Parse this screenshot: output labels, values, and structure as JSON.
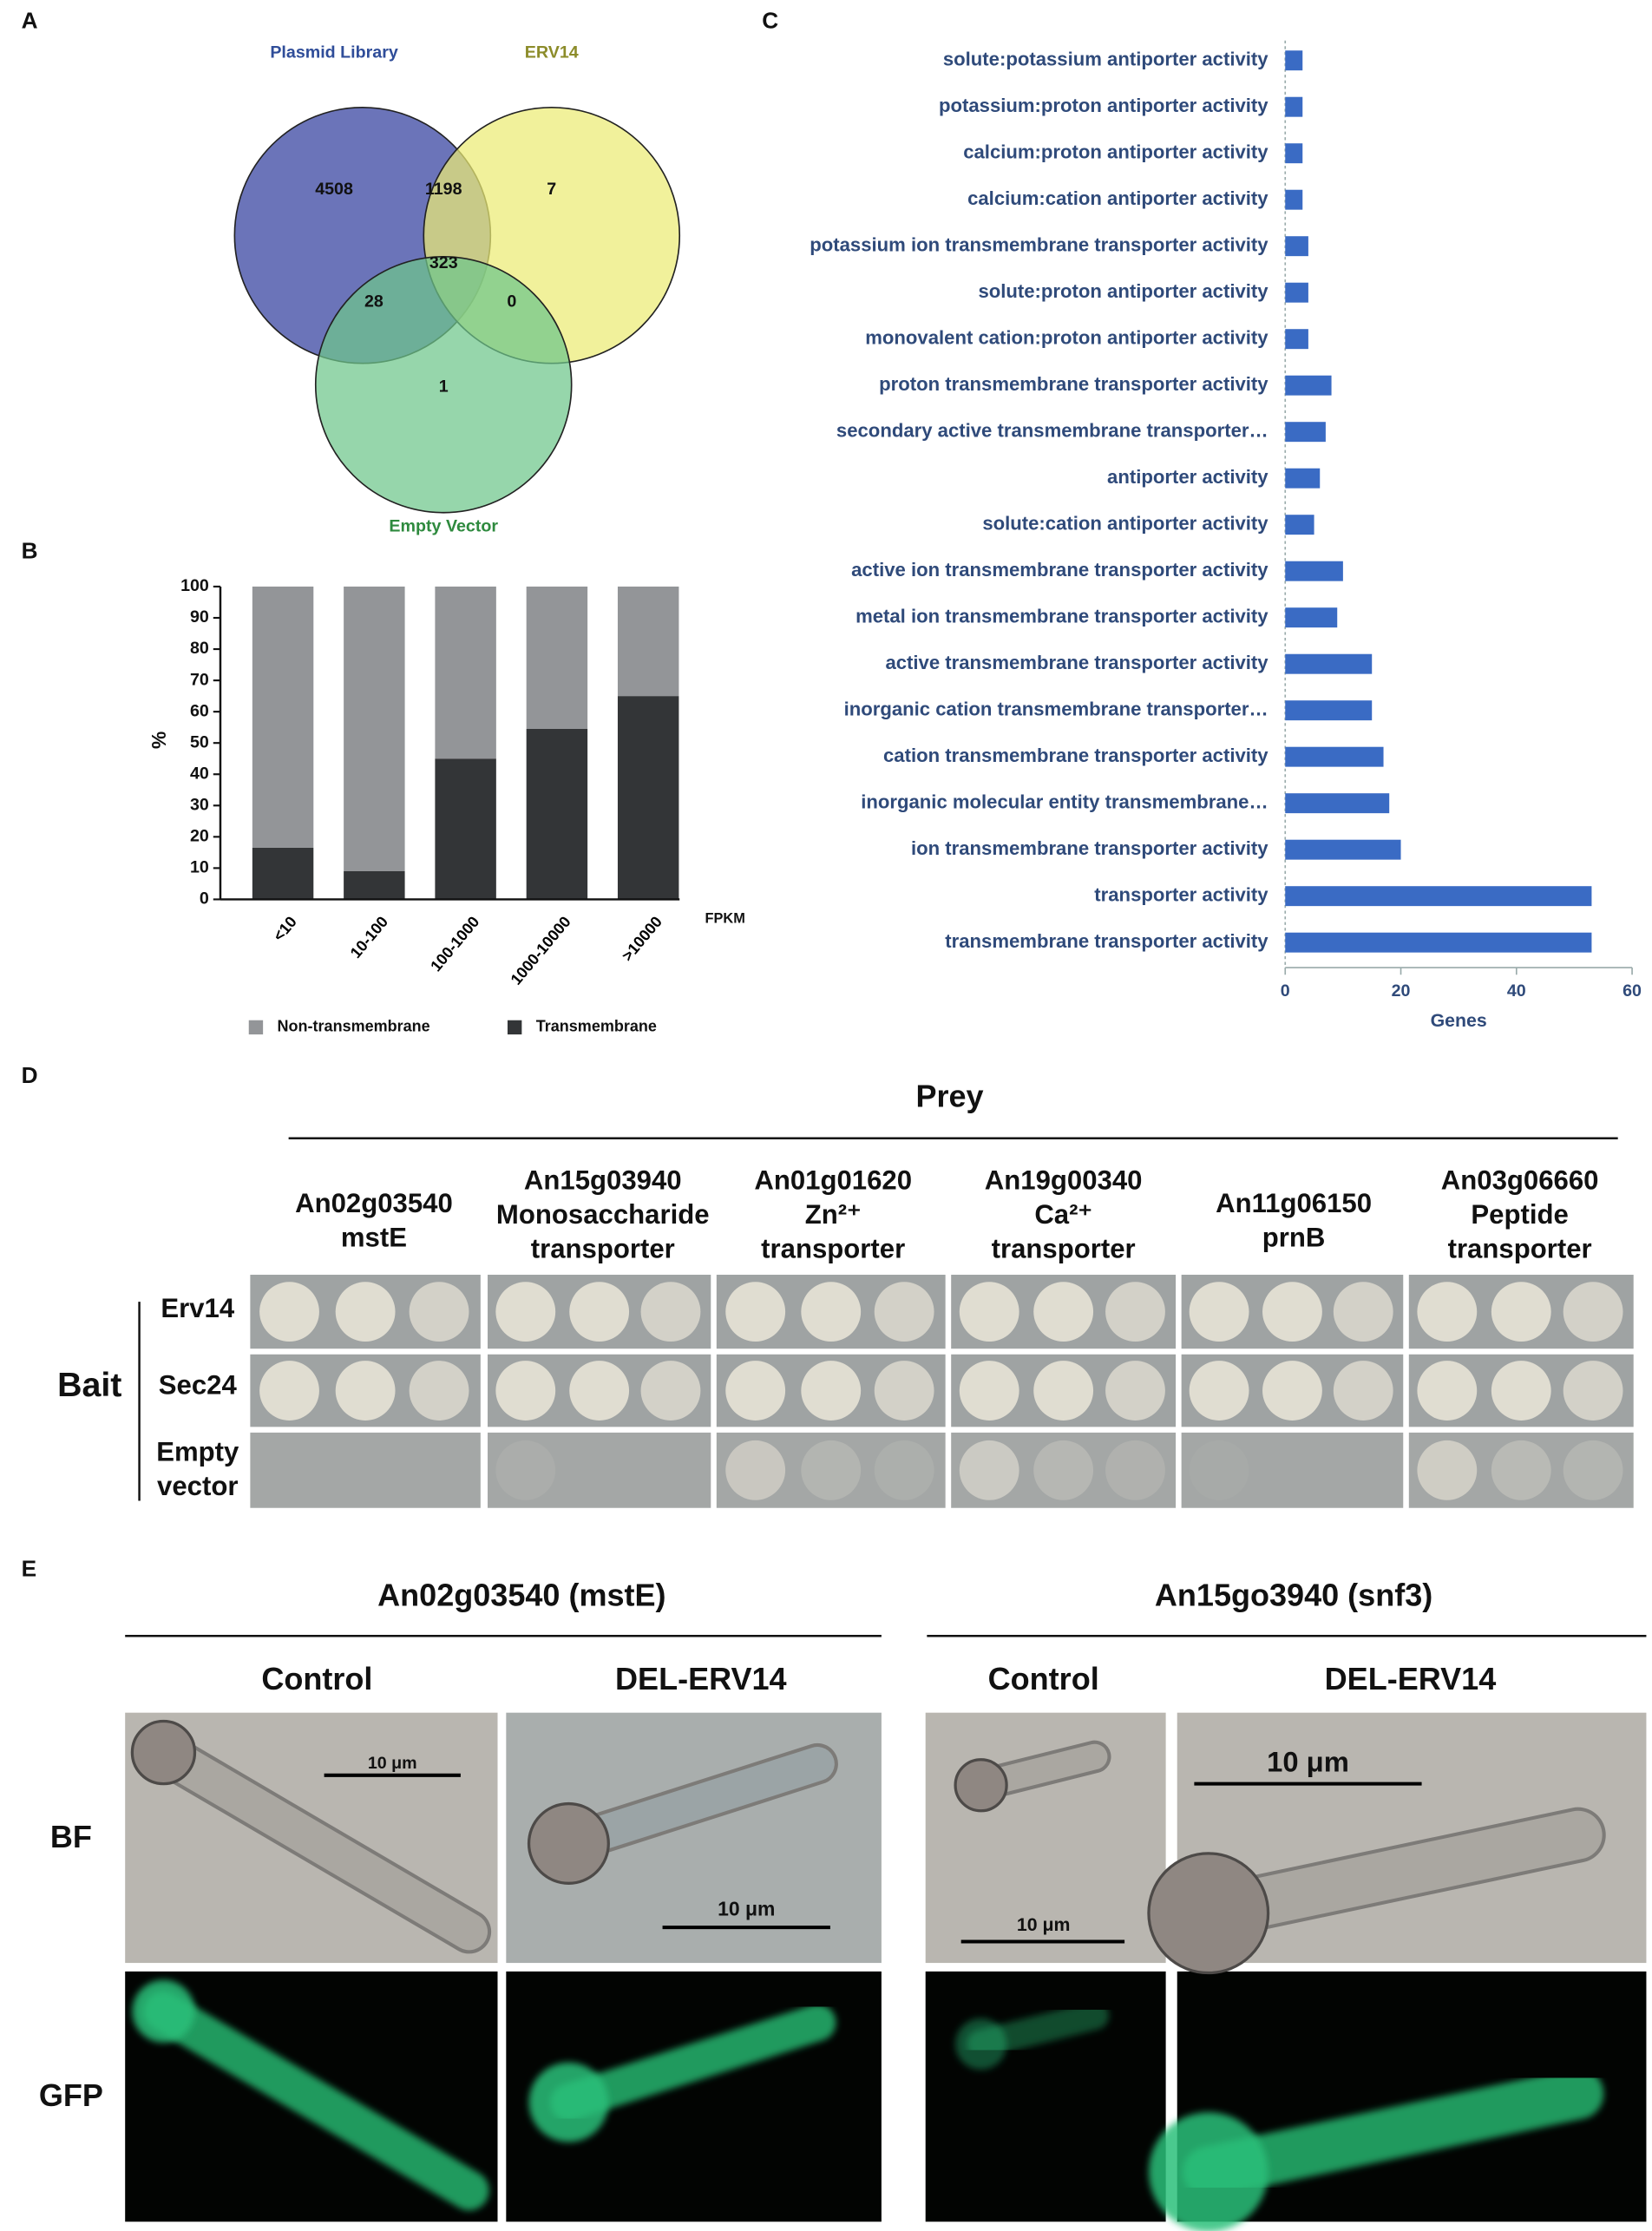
{
  "panel_labels": [
    "A",
    "B",
    "C",
    "D",
    "E"
  ],
  "chart_data": [
    {
      "type": "venn",
      "sets": [
        {
          "name": "Plasmid Library",
          "color": "#6b74b9"
        },
        {
          "name": "ERV14",
          "color": "#ebeb74"
        },
        {
          "name": "Empty Vector",
          "color": "#6ec68a"
        }
      ],
      "values": [
        4508,
        1198,
        7,
        323,
        28,
        0,
        1
      ]
    },
    {
      "type": "bar",
      "stacked": true,
      "categories": [
        "<10",
        "10-100",
        "100-1000",
        "1000-10000",
        ">10000"
      ],
      "series": [
        {
          "name": "Transmembrane",
          "color": "#333537",
          "values": [
            16.5,
            9,
            45,
            54.5,
            65
          ]
        },
        {
          "name": "Non-transmembrane",
          "color": "#939598",
          "values": [
            83.5,
            91,
            55,
            45.5,
            35
          ]
        }
      ],
      "ylim": [
        0,
        100
      ],
      "yticks": [
        0,
        10,
        20,
        30,
        40,
        50,
        60,
        70,
        80,
        90,
        100
      ],
      "ylabel": "%",
      "xlabel": "FPKM",
      "legend": "bottom"
    },
    {
      "type": "hbar",
      "categories": [
        "solute:potassium antiporter activity",
        "potassium:proton antiporter activity",
        "calcium:proton antiporter activity",
        "calcium:cation antiporter activity",
        "potassium ion transmembrane transporter activity",
        "solute:proton antiporter activity",
        "monovalent cation:proton antiporter activity",
        "proton transmembrane transporter activity",
        "secondary active transmembrane transporter…",
        "antiporter activity",
        "solute:cation antiporter activity",
        "active ion transmembrane transporter activity",
        "metal ion transmembrane transporter activity",
        "active transmembrane transporter activity",
        "inorganic cation transmembrane transporter…",
        "cation transmembrane transporter activity",
        "inorganic molecular entity transmembrane…",
        "ion transmembrane transporter activity",
        "transporter activity",
        "transmembrane transporter activity"
      ],
      "values": [
        3,
        3,
        3,
        3,
        4,
        4,
        4,
        8,
        7,
        6,
        5,
        10,
        9,
        15,
        15,
        17,
        18,
        20,
        53,
        53
      ],
      "color": "#3a6bc4",
      "xlim": [
        0,
        60
      ],
      "xticks": [
        0,
        20,
        40,
        60
      ],
      "xlabel": "Genes"
    }
  ],
  "yeast_two_hybrid": {
    "title": "Prey",
    "bait_label": "Bait",
    "columns": [
      [
        "An02g03540",
        "mstE"
      ],
      [
        "An15g03940",
        "Monosaccharide",
        "transporter"
      ],
      [
        "An01g01620",
        "Zn²⁺",
        "transporter"
      ],
      [
        "An19g00340",
        "Ca²⁺",
        "transporter"
      ],
      [
        "An11g06150",
        "prnB"
      ],
      [
        "An03g06660",
        "Peptide",
        "transporter"
      ]
    ],
    "rows": [
      [
        "Erv14"
      ],
      [
        "Sec24"
      ],
      [
        "Empty",
        "vector"
      ]
    ]
  },
  "microscopy": {
    "groups": [
      {
        "title": "An02g03540 (mstE)",
        "columns": [
          "Control",
          "DEL-ERV14"
        ]
      },
      {
        "title": "An15go3940 (snf3)",
        "columns": [
          "Control",
          "DEL-ERV14"
        ]
      }
    ],
    "rows": [
      "BF",
      "GFP"
    ],
    "scale_bars": [
      "10 μm",
      "10 μm",
      "10 μm",
      "10 μm"
    ]
  }
}
